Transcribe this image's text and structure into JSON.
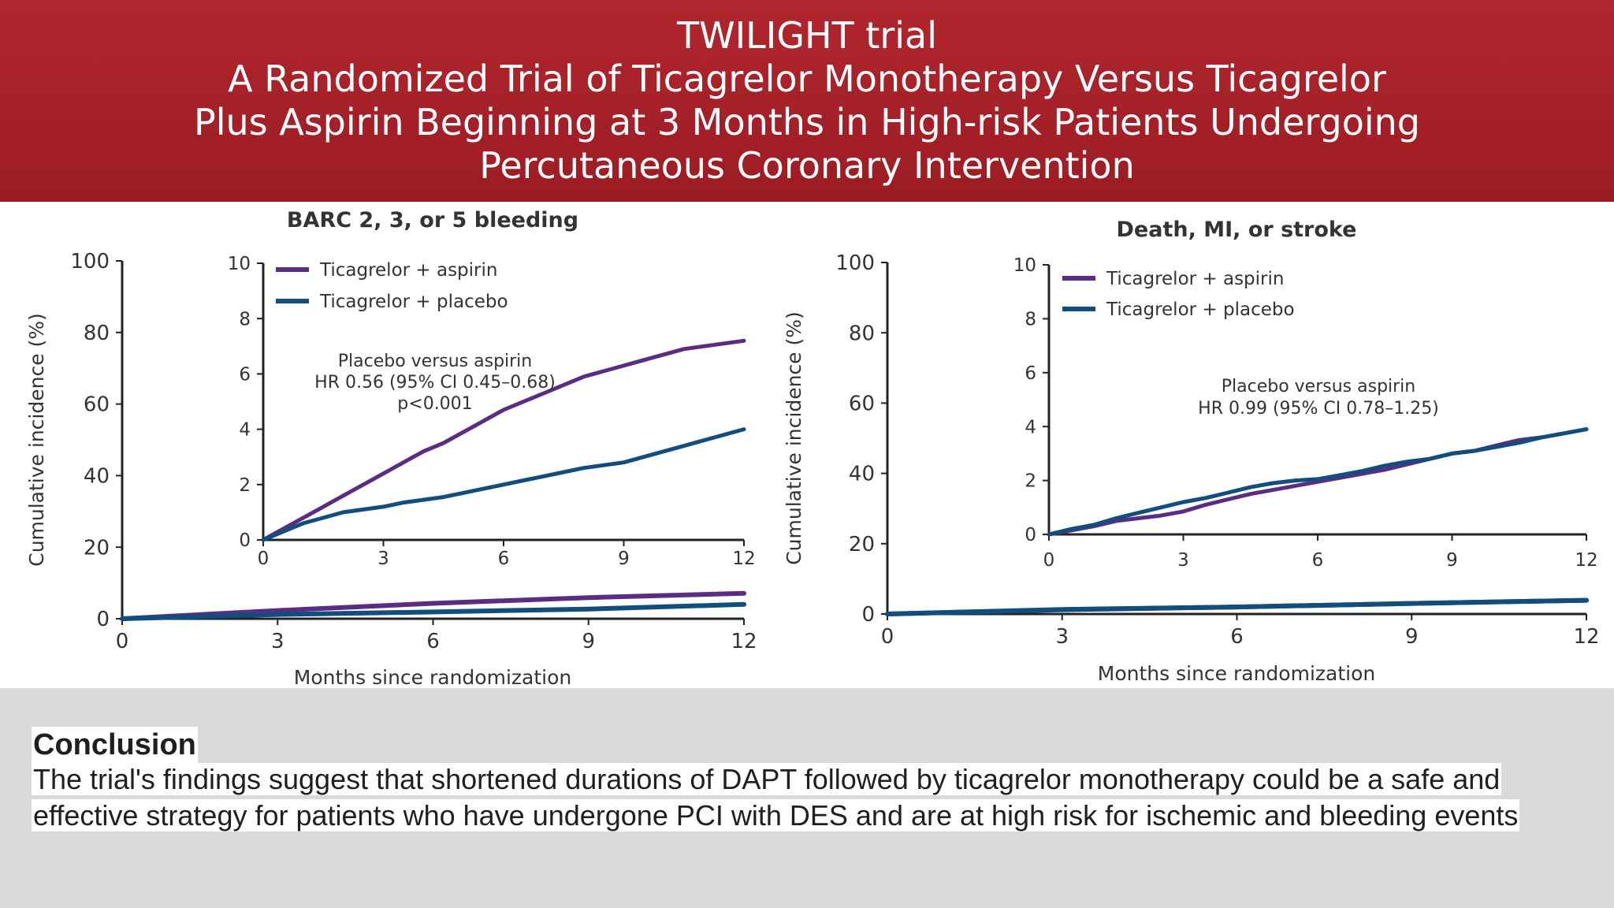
{
  "header": {
    "title_lines": [
      "TWILIGHT trial",
      "A Randomized Trial of Ticagrelor Monotherapy Versus Ticagrelor",
      "Plus Aspirin Beginning at 3 Months in High-risk Patients Undergoing",
      "Percutaneous Coronary Intervention"
    ]
  },
  "colors": {
    "header_bg": "#a8222a",
    "aspirin": "#5b2c83",
    "placebo": "#114d7d",
    "footer_bg": "#d9d9d9"
  },
  "chart_data": [
    {
      "type": "line",
      "title": "BARC 2, 3, or 5 bleeding",
      "xlabel": "Months since randomization",
      "ylabel": "Cumulative incidence (%)",
      "xlim": [
        0,
        12
      ],
      "ylim": [
        0,
        100
      ],
      "xticks": [
        0,
        3,
        6,
        9,
        12
      ],
      "yticks": [
        0,
        20,
        40,
        60,
        80,
        100
      ],
      "series": [
        {
          "name": "Ticagrelor + aspirin",
          "color": "#5b2c83",
          "x": [
            0,
            3,
            6,
            9,
            12
          ],
          "y": [
            0,
            2.3,
            4.3,
            5.9,
            7.1
          ]
        },
        {
          "name": "Ticagrelor + placebo",
          "color": "#114d7d",
          "x": [
            0,
            3,
            6,
            9,
            12
          ],
          "y": [
            0,
            1.2,
            1.9,
            2.7,
            4.0
          ]
        }
      ],
      "inset": {
        "xlim": [
          0,
          12
        ],
        "ylim": [
          0,
          10
        ],
        "xticks": [
          0,
          3,
          6,
          9,
          12
        ],
        "yticks": [
          0,
          2,
          4,
          6,
          8,
          10
        ],
        "legend": [
          "Ticagrelor + aspirin",
          "Ticagrelor + placebo"
        ],
        "annotation": [
          "Placebo versus aspirin",
          "HR 0.56 (95% CI 0.45–0.68)",
          "p<0.001"
        ],
        "series": [
          {
            "name": "Ticagrelor + aspirin",
            "color": "#5b2c83",
            "x": [
              0,
              0.5,
              1,
              1.5,
              2,
              2.5,
              3,
              3.5,
              4,
              4.5,
              5,
              5.5,
              6,
              6.5,
              7,
              7.5,
              8,
              8.5,
              9,
              9.5,
              10,
              10.5,
              11,
              11.5,
              12
            ],
            "y": [
              0,
              0.4,
              0.8,
              1.2,
              1.6,
              2.0,
              2.4,
              2.8,
              3.2,
              3.5,
              3.9,
              4.3,
              4.7,
              5.0,
              5.3,
              5.6,
              5.9,
              6.1,
              6.3,
              6.5,
              6.7,
              6.9,
              7.0,
              7.1,
              7.2
            ]
          },
          {
            "name": "Ticagrelor + placebo",
            "color": "#114d7d",
            "x": [
              0,
              0.5,
              1,
              1.5,
              2,
              2.5,
              3,
              3.5,
              4,
              4.5,
              5,
              5.5,
              6,
              6.5,
              7,
              7.5,
              8,
              8.5,
              9,
              9.5,
              10,
              10.5,
              11,
              11.5,
              12
            ],
            "y": [
              0,
              0.3,
              0.6,
              0.8,
              1.0,
              1.1,
              1.2,
              1.35,
              1.45,
              1.55,
              1.7,
              1.85,
              2.0,
              2.15,
              2.3,
              2.45,
              2.6,
              2.7,
              2.8,
              3.0,
              3.2,
              3.4,
              3.6,
              3.8,
              4.0
            ]
          }
        ]
      }
    },
    {
      "type": "line",
      "title": "Death, MI, or stroke",
      "xlabel": "Months since randomization",
      "ylabel": "Cumulative incidence (%)",
      "xlim": [
        0,
        12
      ],
      "ylim": [
        0,
        100
      ],
      "xticks": [
        0,
        3,
        6,
        9,
        12
      ],
      "yticks": [
        0,
        20,
        40,
        60,
        80,
        100
      ],
      "series": [
        {
          "name": "Ticagrelor + aspirin",
          "color": "#5b2c83",
          "x": [
            0,
            3,
            6,
            9,
            12
          ],
          "y": [
            0,
            1.2,
            2.0,
            3.0,
            3.9
          ]
        },
        {
          "name": "Ticagrelor + placebo",
          "color": "#114d7d",
          "x": [
            0,
            3,
            6,
            9,
            12
          ],
          "y": [
            0,
            1.3,
            2.0,
            3.0,
            3.9
          ]
        }
      ],
      "inset": {
        "xlim": [
          0,
          12
        ],
        "ylim": [
          0,
          10
        ],
        "xticks": [
          0,
          3,
          6,
          9,
          12
        ],
        "yticks": [
          0,
          2,
          4,
          6,
          8,
          10
        ],
        "legend": [
          "Ticagrelor + aspirin",
          "Ticagrelor + placebo"
        ],
        "annotation": [
          "Placebo versus aspirin",
          "HR 0.99 (95% CI 0.78–1.25)"
        ],
        "series": [
          {
            "name": "Ticagrelor + aspirin",
            "color": "#5b2c83",
            "x": [
              0,
              0.5,
              1,
              1.5,
              2,
              2.5,
              3,
              3.5,
              4,
              4.5,
              5,
              5.5,
              6,
              6.5,
              7,
              7.5,
              8,
              8.5,
              9,
              9.5,
              10,
              10.5,
              11,
              11.5,
              12
            ],
            "y": [
              0,
              0.15,
              0.3,
              0.5,
              0.6,
              0.7,
              0.85,
              1.1,
              1.3,
              1.5,
              1.65,
              1.8,
              1.95,
              2.1,
              2.25,
              2.4,
              2.6,
              2.8,
              3.0,
              3.1,
              3.3,
              3.5,
              3.6,
              3.75,
              3.9
            ]
          },
          {
            "name": "Ticagrelor + placebo",
            "color": "#114d7d",
            "x": [
              0,
              0.5,
              1,
              1.5,
              2,
              2.5,
              3,
              3.5,
              4,
              4.5,
              5,
              5.5,
              6,
              6.5,
              7,
              7.5,
              8,
              8.5,
              9,
              9.5,
              10,
              10.5,
              11,
              11.5,
              12
            ],
            "y": [
              0,
              0.2,
              0.35,
              0.6,
              0.8,
              1.0,
              1.2,
              1.35,
              1.55,
              1.75,
              1.9,
              2.0,
              2.05,
              2.2,
              2.35,
              2.55,
              2.7,
              2.8,
              3.0,
              3.1,
              3.25,
              3.4,
              3.6,
              3.75,
              3.9
            ]
          }
        ]
      }
    }
  ],
  "conclusion": {
    "heading": "Conclusion",
    "text": "The trial's findings suggest that shortened durations of DAPT followed by ticagrelor monotherapy could be a safe and effective strategy for patients who have undergone PCI with DES and are at high risk for ischemic and bleeding events"
  }
}
